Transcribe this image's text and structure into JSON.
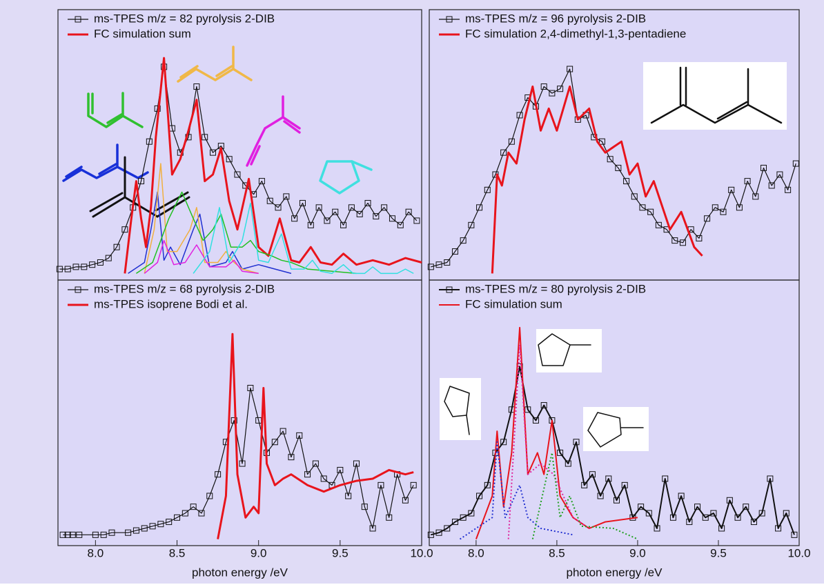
{
  "chart_data": [
    {
      "type": "line",
      "xlim": [
        7.77,
        10.0
      ],
      "ylim": [
        -0.03,
        1.2
      ],
      "series": [
        {
          "name": "ms-TPES m/z = 82 pyrolysis 2-DIB",
          "color": "#111111",
          "marker": "square",
          "width": 1.2,
          "x": [
            7.78,
            7.83,
            7.88,
            7.93,
            7.98,
            8.03,
            8.08,
            8.13,
            8.18,
            8.23,
            8.28,
            8.33,
            8.38,
            8.42,
            8.47,
            8.52,
            8.57,
            8.62,
            8.67,
            8.72,
            8.77,
            8.82,
            8.87,
            8.92,
            8.97,
            9.02,
            9.07,
            9.12,
            9.17,
            9.22,
            9.27,
            9.32,
            9.37,
            9.42,
            9.47,
            9.52,
            9.57,
            9.62,
            9.67,
            9.72,
            9.77,
            9.82,
            9.87,
            9.92,
            9.97
          ],
          "values": [
            0.02,
            0.02,
            0.03,
            0.03,
            0.04,
            0.05,
            0.07,
            0.12,
            0.2,
            0.3,
            0.42,
            0.6,
            0.75,
            0.94,
            0.66,
            0.55,
            0.62,
            0.85,
            0.62,
            0.55,
            0.58,
            0.52,
            0.45,
            0.4,
            0.36,
            0.42,
            0.33,
            0.3,
            0.35,
            0.25,
            0.32,
            0.22,
            0.3,
            0.24,
            0.28,
            0.22,
            0.3,
            0.27,
            0.32,
            0.26,
            0.3,
            0.25,
            0.22,
            0.28,
            0.24
          ]
        },
        {
          "name": "FC simulation sum",
          "color": "#e8141c",
          "width": 3,
          "x": [
            8.18,
            8.22,
            8.25,
            8.28,
            8.31,
            8.34,
            8.37,
            8.42,
            8.47,
            8.52,
            8.57,
            8.62,
            8.67,
            8.72,
            8.77,
            8.82,
            8.87,
            8.94,
            9.0,
            9.06,
            9.13,
            9.2,
            9.25,
            9.32,
            9.38,
            9.45,
            9.52,
            9.6,
            9.7,
            9.8,
            9.9,
            10.0
          ],
          "values": [
            0.0,
            0.25,
            0.42,
            0.25,
            0.12,
            0.3,
            0.62,
            0.98,
            0.45,
            0.52,
            0.65,
            0.79,
            0.42,
            0.45,
            0.57,
            0.33,
            0.2,
            0.43,
            0.12,
            0.08,
            0.25,
            0.06,
            0.05,
            0.12,
            0.05,
            0.04,
            0.09,
            0.04,
            0.06,
            0.04,
            0.07,
            0.05
          ]
        },
        {
          "color": "#2030d0",
          "width": 1.5,
          "x": [
            8.2,
            8.3,
            8.34,
            8.38,
            8.42,
            8.46,
            8.52,
            8.6,
            8.64,
            8.7,
            8.8,
            8.84,
            8.9,
            9.0,
            9.05,
            9.2
          ],
          "values": [
            0.0,
            0.05,
            0.2,
            0.37,
            0.06,
            0.12,
            0.04,
            0.2,
            0.27,
            0.03,
            0.05,
            0.1,
            0.02,
            0.04,
            0.03,
            0.0
          ]
        },
        {
          "color": "#f0b040",
          "width": 1.5,
          "x": [
            8.3,
            8.36,
            8.4,
            8.44,
            8.5,
            8.58,
            8.62,
            8.67,
            8.75,
            8.8,
            8.85,
            8.9,
            9.0
          ],
          "values": [
            0.0,
            0.2,
            0.5,
            0.1,
            0.1,
            0.2,
            0.3,
            0.05,
            0.05,
            0.1,
            0.05,
            0.02,
            0.0
          ]
        },
        {
          "color": "#20c020",
          "width": 1.5,
          "x": [
            8.25,
            8.35,
            8.45,
            8.53,
            8.6,
            8.66,
            8.72,
            8.77,
            8.83,
            8.9,
            8.95,
            9.0,
            9.08,
            9.14,
            9.2,
            9.3,
            9.45,
            9.6
          ],
          "values": [
            0.0,
            0.05,
            0.25,
            0.37,
            0.25,
            0.15,
            0.2,
            0.27,
            0.12,
            0.12,
            0.15,
            0.1,
            0.08,
            0.06,
            0.05,
            0.02,
            0.01,
            0.0
          ]
        },
        {
          "color": "#e020e0",
          "width": 1.5,
          "x": [
            8.3,
            8.38,
            8.42,
            8.48,
            8.55,
            8.62,
            8.7,
            8.8,
            8.85,
            8.9,
            9.0
          ],
          "values": [
            0.0,
            0.05,
            0.15,
            0.04,
            0.05,
            0.13,
            0.03,
            0.03,
            0.06,
            0.01,
            0.0
          ]
        },
        {
          "color": "#30e0e0",
          "width": 1.5,
          "x": [
            8.6,
            8.7,
            8.76,
            8.82,
            8.9,
            8.95,
            9.0,
            9.06,
            9.14,
            9.2,
            9.28,
            9.33,
            9.38,
            9.45,
            9.52,
            9.58,
            9.65,
            9.7,
            9.75,
            9.85,
            9.9,
            9.95
          ],
          "values": [
            0.0,
            0.1,
            0.3,
            0.05,
            0.15,
            0.32,
            0.06,
            0.05,
            0.18,
            0.02,
            0.02,
            0.06,
            0.01,
            0.0,
            0.04,
            0.0,
            0.0,
            0.03,
            0.0,
            0.0,
            0.02,
            0.0
          ]
        }
      ]
    },
    {
      "type": "line",
      "xlim": [
        7.71,
        10.0
      ],
      "ylim": [
        -0.03,
        1.2
      ],
      "series": [
        {
          "name": "ms-TPES m/z = 96 pyrolysis 2-DIB",
          "color": "#111111",
          "marker": "square",
          "width": 1.2,
          "x": [
            7.72,
            7.77,
            7.82,
            7.87,
            7.92,
            7.97,
            8.02,
            8.07,
            8.12,
            8.17,
            8.22,
            8.27,
            8.32,
            8.37,
            8.42,
            8.47,
            8.52,
            8.58,
            8.63,
            8.68,
            8.73,
            8.78,
            8.83,
            8.88,
            8.93,
            8.98,
            9.03,
            9.08,
            9.13,
            9.18,
            9.23,
            9.28,
            9.33,
            9.38,
            9.43,
            9.48,
            9.53,
            9.58,
            9.63,
            9.68,
            9.73,
            9.78,
            9.83,
            9.88,
            9.93,
            9.98
          ],
          "values": [
            0.03,
            0.04,
            0.05,
            0.1,
            0.15,
            0.22,
            0.3,
            0.38,
            0.45,
            0.55,
            0.6,
            0.72,
            0.8,
            0.76,
            0.85,
            0.82,
            0.84,
            0.93,
            0.7,
            0.72,
            0.62,
            0.6,
            0.52,
            0.48,
            0.42,
            0.35,
            0.3,
            0.28,
            0.22,
            0.2,
            0.15,
            0.14,
            0.2,
            0.16,
            0.25,
            0.3,
            0.28,
            0.38,
            0.3,
            0.42,
            0.35,
            0.48,
            0.4,
            0.45,
            0.38,
            0.5
          ]
        },
        {
          "name": "FC simulation 2,4-dimethyl-1,3-pentadiene",
          "color": "#e8141c",
          "width": 3,
          "x": [
            8.1,
            8.13,
            8.16,
            8.2,
            8.25,
            8.3,
            8.35,
            8.4,
            8.45,
            8.5,
            8.58,
            8.63,
            8.7,
            8.75,
            8.8,
            8.9,
            8.95,
            9.0,
            9.05,
            9.1,
            9.2,
            9.27,
            9.35,
            9.4
          ],
          "values": [
            0.0,
            0.45,
            0.4,
            0.55,
            0.5,
            0.7,
            0.85,
            0.65,
            0.75,
            0.65,
            0.85,
            0.7,
            0.75,
            0.6,
            0.55,
            0.6,
            0.45,
            0.5,
            0.35,
            0.42,
            0.2,
            0.28,
            0.12,
            0.08
          ]
        }
      ]
    },
    {
      "type": "line",
      "xlim": [
        7.77,
        10.0
      ],
      "ylim": [
        -0.03,
        1.2
      ],
      "xticks": [
        {
          "value": 8.0,
          "label": "8.0"
        },
        {
          "value": 8.5,
          "label": "8.5"
        },
        {
          "value": 9.0,
          "label": "9.0"
        },
        {
          "value": 9.5,
          "label": "9.5"
        },
        {
          "value": 10.0,
          "label": "10.0"
        }
      ],
      "xlabel": "photon energy /eV",
      "series": [
        {
          "name": "ms-TPES m/z = 68 pyrolysis 2-DIB",
          "color": "#111111",
          "marker": "square",
          "width": 1.2,
          "x": [
            7.8,
            7.83,
            7.86,
            7.9,
            8.0,
            8.05,
            8.1,
            8.2,
            8.25,
            8.3,
            8.35,
            8.4,
            8.45,
            8.5,
            8.55,
            8.6,
            8.65,
            8.7,
            8.75,
            8.8,
            8.85,
            8.9,
            8.95,
            9.0,
            9.05,
            9.1,
            9.15,
            9.2,
            9.25,
            9.3,
            9.35,
            9.4,
            9.45,
            9.5,
            9.55,
            9.6,
            9.65,
            9.7,
            9.75,
            9.8,
            9.85,
            9.9,
            9.95
          ],
          "values": [
            0.02,
            0.02,
            0.02,
            0.02,
            0.02,
            0.02,
            0.03,
            0.03,
            0.04,
            0.05,
            0.06,
            0.07,
            0.08,
            0.1,
            0.12,
            0.15,
            0.12,
            0.2,
            0.3,
            0.45,
            0.55,
            0.35,
            0.7,
            0.55,
            0.4,
            0.45,
            0.5,
            0.38,
            0.48,
            0.3,
            0.35,
            0.28,
            0.25,
            0.32,
            0.2,
            0.35,
            0.15,
            0.05,
            0.25,
            0.1,
            0.3,
            0.18,
            0.25
          ]
        },
        {
          "name": "ms-TPES isoprene Bodi et al.",
          "color": "#e8141c",
          "width": 3,
          "x": [
            8.75,
            8.8,
            8.84,
            8.87,
            8.92,
            8.97,
            9.0,
            9.03,
            9.05,
            9.1,
            9.15,
            9.2,
            9.3,
            9.4,
            9.5,
            9.6,
            9.7,
            9.8,
            9.9,
            9.95
          ],
          "values": [
            0.0,
            0.2,
            0.95,
            0.3,
            0.1,
            0.15,
            0.12,
            0.7,
            0.35,
            0.25,
            0.28,
            0.3,
            0.25,
            0.22,
            0.25,
            0.27,
            0.28,
            0.32,
            0.3,
            0.31
          ]
        }
      ]
    },
    {
      "type": "line",
      "xlim": [
        7.71,
        10.0
      ],
      "ylim": [
        -0.03,
        1.2
      ],
      "xticks": [
        {
          "value": 8.0,
          "label": "8.0"
        },
        {
          "value": 8.5,
          "label": "8.5"
        },
        {
          "value": 9.0,
          "label": "9.0"
        },
        {
          "value": 9.5,
          "label": "9.5"
        },
        {
          "value": 10.0,
          "label": "10.0"
        }
      ],
      "xlabel": "photon energy /eV",
      "series": [
        {
          "name": "ms-TPES m/z = 80 pyrolysis 2-DIB",
          "color": "#111111",
          "marker": "square",
          "width": 2,
          "x": [
            7.72,
            7.77,
            7.82,
            7.87,
            7.92,
            7.97,
            8.02,
            8.07,
            8.12,
            8.17,
            8.22,
            8.27,
            8.32,
            8.37,
            8.42,
            8.47,
            8.52,
            8.57,
            8.62,
            8.67,
            8.72,
            8.77,
            8.82,
            8.87,
            8.92,
            8.97,
            9.02,
            9.07,
            9.12,
            9.17,
            9.22,
            9.27,
            9.32,
            9.37,
            9.42,
            9.47,
            9.52,
            9.57,
            9.62,
            9.67,
            9.72,
            9.77,
            9.82,
            9.87,
            9.92,
            9.97
          ],
          "values": [
            0.02,
            0.03,
            0.05,
            0.08,
            0.1,
            0.12,
            0.2,
            0.25,
            0.4,
            0.45,
            0.6,
            0.8,
            0.6,
            0.55,
            0.62,
            0.55,
            0.4,
            0.35,
            0.45,
            0.25,
            0.3,
            0.2,
            0.28,
            0.18,
            0.25,
            0.1,
            0.15,
            0.12,
            0.05,
            0.28,
            0.1,
            0.2,
            0.08,
            0.15,
            0.1,
            0.12,
            0.05,
            0.18,
            0.1,
            0.15,
            0.08,
            0.12,
            0.28,
            0.05,
            0.12,
            0.02
          ]
        },
        {
          "name": "FC simulation sum",
          "color": "#e8141c",
          "width": 2,
          "x": [
            8.0,
            8.1,
            8.13,
            8.17,
            8.22,
            8.27,
            8.32,
            8.38,
            8.42,
            8.47,
            8.52,
            8.6,
            8.7,
            8.8,
            9.0
          ],
          "values": [
            0.0,
            0.2,
            0.5,
            0.15,
            0.4,
            0.98,
            0.3,
            0.4,
            0.3,
            0.55,
            0.2,
            0.1,
            0.05,
            0.08,
            0.1
          ]
        },
        {
          "color": "#2030d0",
          "width": 2,
          "dash": true,
          "x": [
            7.9,
            8.1,
            8.13,
            8.18,
            8.27,
            8.32,
            8.4,
            8.6
          ],
          "values": [
            0.0,
            0.1,
            0.45,
            0.1,
            0.25,
            0.1,
            0.05,
            0.02
          ]
        },
        {
          "color": "#e0209a",
          "width": 2,
          "dash": true,
          "x": [
            8.2,
            8.27,
            8.32,
            8.4,
            8.48,
            8.6,
            8.7
          ],
          "values": [
            0.0,
            0.9,
            0.3,
            0.35,
            0.3,
            0.1,
            0.05
          ]
        },
        {
          "color": "#20a020",
          "width": 2,
          "dash": true,
          "x": [
            8.35,
            8.47,
            8.52,
            8.58,
            8.65,
            8.85,
            9.0
          ],
          "values": [
            0.0,
            0.4,
            0.1,
            0.2,
            0.06,
            0.05,
            0.0
          ]
        }
      ]
    }
  ]
}
